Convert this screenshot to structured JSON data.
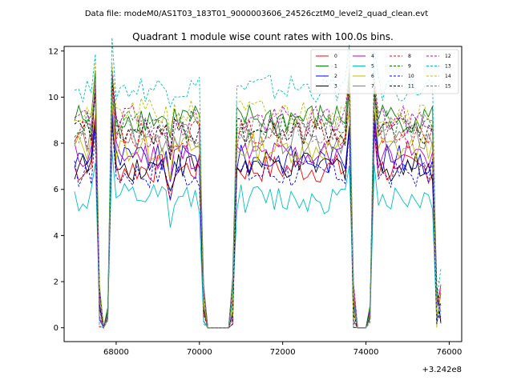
{
  "figure": {
    "suptitle": "Data file: modeM0/AS1T03_183T01_9000003606_24526cztM0_level2_quad_clean.evt",
    "x_offset_label": "+3.242e8"
  },
  "chart_data": {
    "type": "line",
    "title": "Quadrant 1 module wise count rates with 100.0s bins.",
    "xlabel": "",
    "ylabel": "",
    "xlim": [
      66750,
      76300
    ],
    "ylim": [
      -0.6,
      12.2
    ],
    "xticks": [
      68000,
      70000,
      72000,
      74000,
      76000
    ],
    "yticks": [
      0,
      2,
      4,
      6,
      8,
      10,
      12
    ],
    "x_offset": 324200000,
    "legend_position": "top-right",
    "x_range": [
      67000,
      75800
    ],
    "x_step": 100,
    "gaps": [
      [
        67600,
        67800
      ],
      [
        70100,
        70800
      ],
      [
        73700,
        74100
      ],
      [
        75700,
        75800
      ]
    ],
    "series": [
      {
        "name": "0",
        "color": "#ff0000",
        "style": "solid",
        "base": 6.9
      },
      {
        "name": "1",
        "color": "#008000",
        "style": "solid",
        "base": 9.1
      },
      {
        "name": "2",
        "color": "#0000ff",
        "style": "solid",
        "base": 7.3
      },
      {
        "name": "3",
        "color": "#000000",
        "style": "solid",
        "base": 7.0
      },
      {
        "name": "4",
        "color": "#c000c0",
        "style": "solid",
        "base": 7.5
      },
      {
        "name": "5",
        "color": "#00bfbf",
        "style": "solid",
        "base": 5.6
      },
      {
        "name": "6",
        "color": "#bfbf00",
        "style": "solid",
        "base": 7.8
      },
      {
        "name": "7",
        "color": "#808080",
        "style": "solid",
        "base": 8.2
      },
      {
        "name": "8",
        "color": "#ff0000",
        "style": "dashed",
        "base": 8.4
      },
      {
        "name": "9",
        "color": "#008000",
        "style": "dashed",
        "base": 8.8
      },
      {
        "name": "10",
        "color": "#0000ff",
        "style": "dashed",
        "base": 6.7
      },
      {
        "name": "11",
        "color": "#000000",
        "style": "dashed",
        "base": 8.5
      },
      {
        "name": "12",
        "color": "#c000c0",
        "style": "dashed",
        "base": 9.0
      },
      {
        "name": "13",
        "color": "#00bfbf",
        "style": "dashed",
        "base": 10.4
      },
      {
        "name": "14",
        "color": "#bfbf00",
        "style": "dashed",
        "base": 9.3
      },
      {
        "name": "15",
        "color": "#808080",
        "style": "dashed",
        "base": 8.6
      }
    ]
  }
}
